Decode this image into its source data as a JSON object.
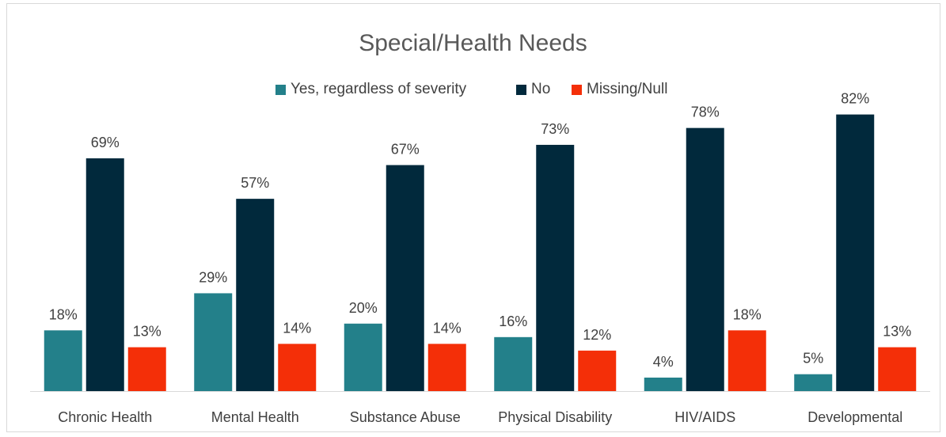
{
  "chart_data": {
    "type": "bar",
    "title": "Special/Health Needs",
    "categories": [
      "Chronic Health",
      "Mental Health",
      "Substance Abuse",
      "Physical Disability",
      "HIV/AIDS",
      "Developmental"
    ],
    "series": [
      {
        "name": "Yes, regardless of severity",
        "color": "#23808a",
        "values": [
          18,
          29,
          20,
          16,
          4,
          5
        ],
        "labels": [
          "18%",
          "29%",
          "20%",
          "16%",
          "4%",
          "5%"
        ]
      },
      {
        "name": "No",
        "color": "#01293c",
        "values": [
          69,
          57,
          67,
          73,
          78,
          82
        ],
        "labels": [
          "69%",
          "57%",
          "67%",
          "73%",
          "78%",
          "82%"
        ]
      },
      {
        "name": "Missing/Null",
        "color": "#f42f08",
        "values": [
          13,
          14,
          14,
          12,
          18,
          13
        ],
        "labels": [
          "13%",
          "14%",
          "14%",
          "12%",
          "18%",
          "13%"
        ]
      }
    ],
    "ylim": [
      0,
      100
    ],
    "value_format": "percent",
    "legend_position": "top",
    "grid": false
  }
}
